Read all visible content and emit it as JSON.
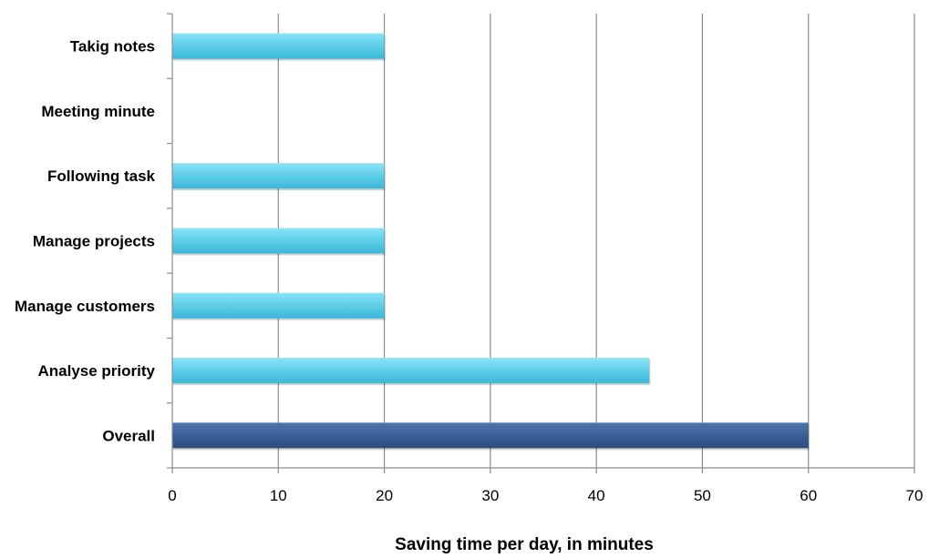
{
  "chart_data": {
    "type": "bar",
    "orientation": "horizontal",
    "categories": [
      "Takig notes",
      "Meeting minute",
      "Following task",
      "Manage projects",
      "Manage customers",
      "Analyse priority",
      "Overall"
    ],
    "values": [
      20,
      0,
      20,
      20,
      20,
      45,
      60
    ],
    "bar_colors": [
      "#5ecde8",
      "#5ecde8",
      "#5ecde8",
      "#5ecde8",
      "#5ecde8",
      "#5ecde8",
      "#3a5f96"
    ],
    "xlabel": "Saving time per day, in minutes",
    "ylabel": "",
    "xlim": [
      0,
      70
    ],
    "xticks": [
      0,
      10,
      20,
      30,
      40,
      50,
      60,
      70
    ],
    "grid": "vertical",
    "legend": "none"
  }
}
